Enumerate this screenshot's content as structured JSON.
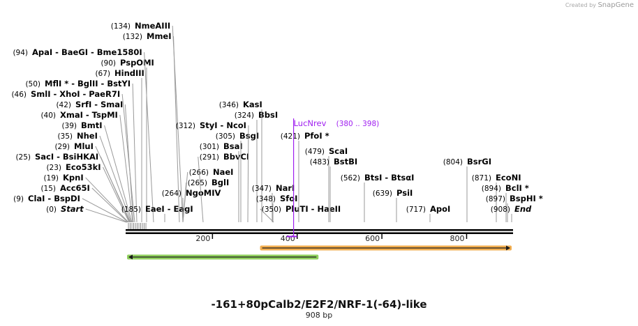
{
  "header": {
    "credit_prefix": "Created by",
    "credit_brand": "SnapGene"
  },
  "sequence": {
    "name": "-161+80pCalb2/E2F2/NRF-1(-64)-like",
    "length_label": "908 bp",
    "length": 908
  },
  "ruler": {
    "ticks": [
      200,
      400,
      600,
      800
    ]
  },
  "colors": {
    "primer": "#a020f0",
    "backbone": "#000000",
    "feature_green": "#7ec843",
    "feature_orange": "#f0a030",
    "line": "#999999"
  },
  "enzymes": [
    {
      "label": "Start",
      "pos": 0,
      "num": "(0)",
      "italic": true
    },
    {
      "label": "ClaI - BspDI",
      "pos": 9,
      "num": "(9)"
    },
    {
      "label": "Acc65I",
      "pos": 15,
      "num": "(15)"
    },
    {
      "label": "KpnI",
      "pos": 19,
      "num": "(19)"
    },
    {
      "label": "Eco53kI",
      "pos": 23,
      "num": "(23)"
    },
    {
      "label": "SacI - BsiHKAI",
      "pos": 25,
      "num": "(25)"
    },
    {
      "label": "MluI",
      "pos": 29,
      "num": "(29)"
    },
    {
      "label": "NheI",
      "pos": 35,
      "num": "(35)"
    },
    {
      "label": "BmtI",
      "pos": 39,
      "num": "(39)"
    },
    {
      "label": "XmaI - TspMI",
      "pos": 40,
      "num": "(40)"
    },
    {
      "label": "SrfI - SmaI",
      "pos": 42,
      "num": "(42)"
    },
    {
      "label": "SmlI - XhoI - PaeR7I",
      "pos": 46,
      "num": "(46)"
    },
    {
      "label": "MflI * - BglII - BstYI",
      "pos": 50,
      "num": "(50)"
    },
    {
      "label": "HindIII",
      "pos": 67,
      "num": "(67)"
    },
    {
      "label": "PspOMI",
      "pos": 90,
      "num": "(90)"
    },
    {
      "label": "ApaI - BaeGI - Bme1580I",
      "pos": 94,
      "num": "(94)"
    },
    {
      "label": "MmeI",
      "pos": 132,
      "num": "(132)"
    },
    {
      "label": "NmeAIII",
      "pos": 134,
      "num": "(134)"
    },
    {
      "label": "EaeI - EagI",
      "pos": 185,
      "num": "(185)"
    },
    {
      "label": "NgoMIV",
      "pos": 264,
      "num": "(264)"
    },
    {
      "label": "BglI",
      "pos": 265,
      "num": "(265)"
    },
    {
      "label": "NaeI",
      "pos": 266,
      "num": "(266)"
    },
    {
      "label": "BbvCI",
      "pos": 291,
      "num": "(291)"
    },
    {
      "label": "BsaI",
      "pos": 301,
      "num": "(301)"
    },
    {
      "label": "BsgI",
      "pos": 305,
      "num": "(305)"
    },
    {
      "label": "StyI - NcoI",
      "pos": 312,
      "num": "(312)"
    },
    {
      "label": "BbsI",
      "pos": 324,
      "num": "(324)"
    },
    {
      "label": "KasI",
      "pos": 346,
      "num": "(346)"
    },
    {
      "label": "NarI",
      "pos": 347,
      "num": "(347)"
    },
    {
      "label": "SfoI",
      "pos": 348,
      "num": "(348)"
    },
    {
      "label": "PluTI - HaeII",
      "pos": 350,
      "num": "(350)"
    },
    {
      "label": "PfoI *",
      "pos": 421,
      "num": "(421)"
    },
    {
      "label": "ScaI",
      "pos": 479,
      "num": "(479)"
    },
    {
      "label": "BstBI",
      "pos": 483,
      "num": "(483)"
    },
    {
      "label": "BtsI - BtsαI",
      "pos": 562,
      "num": "(562)"
    },
    {
      "label": "PsiI",
      "pos": 639,
      "num": "(639)"
    },
    {
      "label": "ApoI",
      "pos": 717,
      "num": "(717)"
    },
    {
      "label": "BsrGI",
      "pos": 804,
      "num": "(804)"
    },
    {
      "label": "EcoNI",
      "pos": 871,
      "num": "(871)"
    },
    {
      "label": "BclI *",
      "pos": 894,
      "num": "(894)"
    },
    {
      "label": "BspHI *",
      "pos": 897,
      "num": "(897)"
    },
    {
      "label": "End",
      "pos": 908,
      "num": "(908)",
      "italic": true
    }
  ],
  "primer": {
    "label": "LucNrev",
    "range": "(380 .. 398)",
    "start": 380,
    "end": 398
  },
  "features": [
    {
      "name": "green-feature-arrow",
      "start": 0,
      "end": 452,
      "direction": "left",
      "color": "#7ec843"
    },
    {
      "name": "orange-feature-arrow",
      "start": 314,
      "end": 908,
      "direction": "right",
      "color": "#f0a030"
    }
  ]
}
